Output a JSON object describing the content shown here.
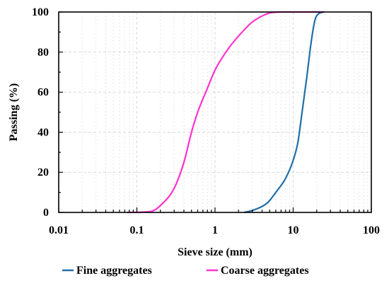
{
  "chart_data": {
    "type": "line",
    "title": "",
    "xlabel": "Sieve size (mm)",
    "ylabel": "Passing (%)",
    "xscale": "log",
    "xlim": [
      0.01,
      100
    ],
    "ylim": [
      0,
      100
    ],
    "x_ticks": [
      "0.01",
      "0.1",
      "1",
      "10",
      "100"
    ],
    "y_ticks": [
      "0",
      "20",
      "40",
      "60",
      "80",
      "100"
    ],
    "grid": true,
    "legend_position": "bottom",
    "series": [
      {
        "name": "Fine aggregates",
        "color": "#1f6fa8",
        "points": [
          [
            2.36,
            0
          ],
          [
            3.0,
            1
          ],
          [
            4.0,
            3
          ],
          [
            4.75,
            5
          ],
          [
            6.0,
            10
          ],
          [
            8.0,
            17
          ],
          [
            10.0,
            26
          ],
          [
            11.5,
            35
          ],
          [
            13.0,
            50
          ],
          [
            15.0,
            68
          ],
          [
            17.0,
            85
          ],
          [
            19.0,
            96
          ],
          [
            21.0,
            99
          ],
          [
            25.0,
            100
          ]
        ]
      },
      {
        "name": "Coarse aggregates",
        "color": "#ff33cc",
        "points": [
          [
            0.075,
            0
          ],
          [
            0.15,
            0.5
          ],
          [
            0.22,
            5
          ],
          [
            0.3,
            12
          ],
          [
            0.4,
            25
          ],
          [
            0.5,
            40
          ],
          [
            0.6,
            50
          ],
          [
            0.8,
            62
          ],
          [
            1.0,
            71
          ],
          [
            1.5,
            82
          ],
          [
            2.0,
            88
          ],
          [
            3.0,
            95
          ],
          [
            4.0,
            98
          ],
          [
            5.0,
            99.5
          ],
          [
            7.0,
            100
          ],
          [
            25.0,
            100
          ]
        ]
      }
    ]
  }
}
